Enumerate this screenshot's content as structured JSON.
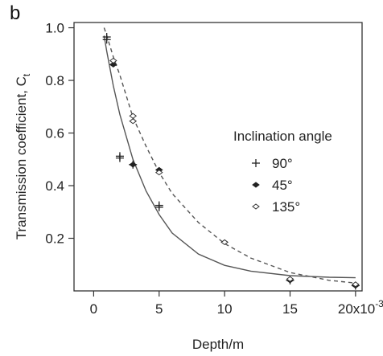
{
  "chart_data": {
    "type": "scatter",
    "panel_label": "b",
    "xlabel": "Depth/m",
    "ylabel": "Transmission coefficient, C",
    "ylabel_subscript": "t",
    "xlim": [
      -0.0015,
      0.0205
    ],
    "ylim": [
      0.0,
      1.02
    ],
    "x_ticks": [
      0,
      0.005,
      0.01,
      0.015,
      0.02
    ],
    "x_tick_labels": [
      "0",
      "5",
      "10",
      "15",
      "20x10"
    ],
    "x_tick_last_superscript": "-3",
    "y_ticks": [
      0.2,
      0.4,
      0.6,
      0.8,
      1.0
    ],
    "y_tick_labels": [
      "0.2",
      "0.4",
      "0.6",
      "0.8",
      "1.0"
    ],
    "grid": false,
    "legend": {
      "title": "Inclination angle",
      "placement": "right",
      "entries": [
        "90°",
        "45°",
        "135°"
      ]
    },
    "series": [
      {
        "name": "90°",
        "marker": "plus",
        "points": [
          [
            0.001,
            0.955
          ],
          [
            0.001,
            0.965
          ],
          [
            0.002,
            0.505
          ],
          [
            0.002,
            0.512
          ],
          [
            0.003,
            0.48
          ],
          [
            0.005,
            0.318
          ],
          [
            0.005,
            0.325
          ],
          [
            0.015,
            0.04
          ],
          [
            0.02,
            0.02
          ]
        ]
      },
      {
        "name": "45°",
        "marker": "filled-diamond",
        "points": [
          [
            0.0015,
            0.86
          ],
          [
            0.003,
            0.48
          ],
          [
            0.005,
            0.46
          ],
          [
            0.015,
            0.04
          ],
          [
            0.02,
            0.02
          ]
        ]
      },
      {
        "name": "135°",
        "marker": "open-diamond",
        "points": [
          [
            0.0015,
            0.875
          ],
          [
            0.003,
            0.645
          ],
          [
            0.003,
            0.665
          ],
          [
            0.005,
            0.45
          ],
          [
            0.01,
            0.185
          ],
          [
            0.015,
            0.045
          ],
          [
            0.02,
            0.025
          ]
        ]
      }
    ],
    "fits": [
      {
        "style": "solid",
        "x": [
          0.0008,
          0.001,
          0.0015,
          0.002,
          0.003,
          0.004,
          0.005,
          0.006,
          0.008,
          0.01,
          0.012,
          0.015,
          0.018,
          0.02
        ],
        "y": [
          0.97,
          0.91,
          0.78,
          0.67,
          0.5,
          0.38,
          0.29,
          0.22,
          0.14,
          0.097,
          0.075,
          0.058,
          0.052,
          0.05
        ]
      },
      {
        "style": "dashed",
        "x": [
          0.0008,
          0.001,
          0.0015,
          0.002,
          0.003,
          0.004,
          0.005,
          0.006,
          0.008,
          0.01,
          0.012,
          0.015,
          0.018,
          0.02
        ],
        "y": [
          1.0,
          0.97,
          0.89,
          0.82,
          0.66,
          0.55,
          0.45,
          0.37,
          0.26,
          0.18,
          0.125,
          0.07,
          0.04,
          0.03
        ]
      }
    ]
  }
}
